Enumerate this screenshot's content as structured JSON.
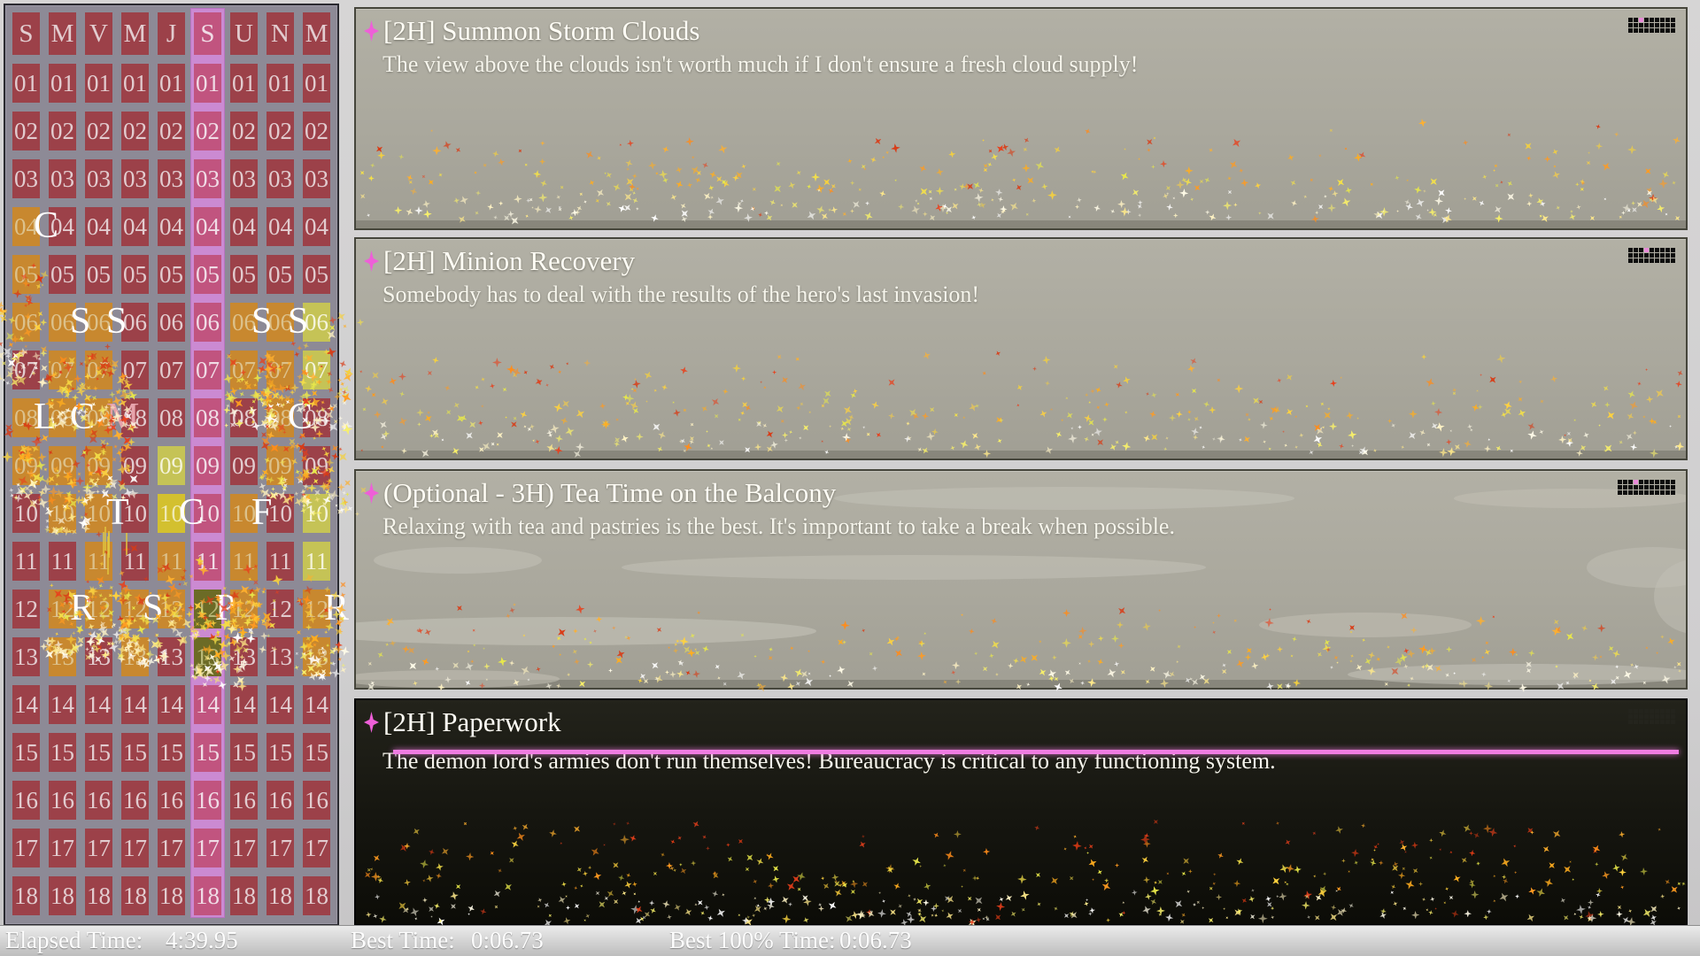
{
  "calendar": {
    "day_headers": [
      "S",
      "M",
      "V",
      "M",
      "J",
      "S",
      "U",
      "N",
      "M"
    ],
    "selected_day_index": 5,
    "time_slots": [
      "01",
      "02",
      "03",
      "04",
      "05",
      "06",
      "07",
      "08",
      "09",
      "10",
      "11",
      "12",
      "13",
      "14",
      "15",
      "16",
      "17",
      "18"
    ],
    "cell_states": [
      "mmmmmpmmm",
      "mmmmmpmmm",
      "mmmmmpmmm",
      "ommmmpmmm",
      "ommmmpmmm",
      "ooommpooy",
      "moommpooy",
      "ooommpmom",
      "ooomypmom",
      "moomdpomy",
      "mmomopomy",
      "mooookomo",
      "momomkmmo",
      "mmmmmpmmm",
      "mmmmmpmmm",
      "mmmmmpmmm",
      "mmmmmpmmm",
      "mmmmmpmmm"
    ],
    "letters": [
      {
        "row": 4,
        "col": 1,
        "char": "C"
      },
      {
        "row": 6,
        "col": 2,
        "char": "S"
      },
      {
        "row": 6,
        "col": 3,
        "char": "S"
      },
      {
        "row": 6,
        "col": 7,
        "char": "S"
      },
      {
        "row": 6,
        "col": 8,
        "char": "S"
      },
      {
        "row": 8,
        "col": 1,
        "char": "L"
      },
      {
        "row": 8,
        "col": 2,
        "char": "C"
      },
      {
        "row": 8,
        "col": 3,
        "char": "M",
        "color": "#e7a3ab"
      },
      {
        "row": 8,
        "col": 8,
        "char": "C"
      },
      {
        "row": 10,
        "col": 3,
        "char": "T"
      },
      {
        "row": 10,
        "col": 5,
        "char": "C"
      },
      {
        "row": 10,
        "col": 7,
        "char": "F"
      },
      {
        "row": 12,
        "col": 2,
        "char": "R"
      },
      {
        "row": 12,
        "col": 4,
        "char": "S"
      },
      {
        "row": 12,
        "col": 6,
        "char": "P"
      },
      {
        "row": 12,
        "col": 9,
        "char": "R"
      }
    ]
  },
  "tasks": [
    {
      "title": "[2H] Summon Storm Clouds",
      "description": "The view above the clouds isn't worth much if I don't ensure a fresh cloud supply!",
      "blocks": {
        "cols": 9,
        "rows": 3,
        "highlight": 2
      }
    },
    {
      "title": "[2H] Minion Recovery",
      "description": "Somebody has to deal with the results of the hero's last invasion!",
      "blocks": {
        "cols": 9,
        "rows": 3,
        "highlight": 3
      }
    },
    {
      "title": "(Optional - 3H) Tea Time on the Balcony",
      "description": "Relaxing with tea and pastries is the best. It's important to take a break when possible.",
      "blocks": {
        "cols": 11,
        "rows": 3,
        "highlight": 3
      }
    },
    {
      "title": "[2H] Paperwork",
      "description": "The demon lord's armies don't run themselves! Bureaucracy is critical to any functioning system.",
      "blocks": {
        "cols": 9,
        "rows": 3,
        "highlight": 3
      }
    }
  ],
  "status_bar": {
    "elapsed_label": "Elapsed Time:",
    "elapsed_value": "4:39.95",
    "best_label": "Best Time:",
    "best_value": "0:06.73",
    "best100_label": "Best 100% Time:",
    "best100_value": "0:06.73"
  },
  "colors": {
    "accent_star": "#ee5fd8",
    "divider_line": "#ef7ce2",
    "block_highlight": "#e88ad8",
    "cell_default": "#9c4149",
    "cell_scheduled": "#c8882f",
    "cell_selected_day": "#c1547f",
    "selected_column_border": "#cb8ad2",
    "cell_done_bright": "#c5c356",
    "cell_done_deep": "#d3c02f",
    "cell_done_dark": "#6c6b26"
  }
}
